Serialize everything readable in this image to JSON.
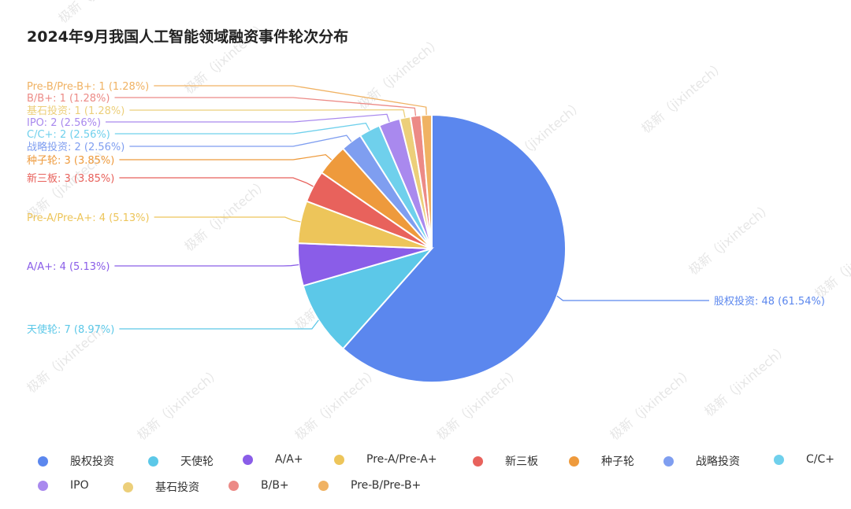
{
  "colors": {
    "股权投资": "#5b87ee",
    "天使轮": "#5cc8e8",
    "A/A+": "#8a5de8",
    "Pre-A/Pre-A+": "#edc55a",
    "新三板": "#e8625c",
    "种子轮": "#ee9a3c",
    "战略投资": "#7f9ef0",
    "C/C+": "#6fd0ec",
    "IPO": "#a989ee",
    "基石投资": "#eccf7a",
    "B/B+": "#ec8a86",
    "Pre-B/Pre-B+": "#f0b263"
  },
  "chart_data": {
    "type": "pie",
    "title": "2024年9月我国人工智能领域融资事件轮次分布",
    "slices": [
      {
        "name": "股权投资",
        "value": 48,
        "percent": "61.54%"
      },
      {
        "name": "天使轮",
        "value": 7,
        "percent": "8.97%"
      },
      {
        "name": "A/A+",
        "value": 4,
        "percent": "5.13%"
      },
      {
        "name": "Pre-A/Pre-A+",
        "value": 4,
        "percent": "5.13%"
      },
      {
        "name": "新三板",
        "value": 3,
        "percent": "3.85%"
      },
      {
        "name": "种子轮",
        "value": 3,
        "percent": "3.85%"
      },
      {
        "name": "战略投资",
        "value": 2,
        "percent": "2.56%"
      },
      {
        "name": "C/C+",
        "value": 2,
        "percent": "2.56%"
      },
      {
        "name": "IPO",
        "value": 2,
        "percent": "2.56%"
      },
      {
        "name": "基石投资",
        "value": 1,
        "percent": "1.28%"
      },
      {
        "name": "B/B+",
        "value": 1,
        "percent": "1.28%"
      },
      {
        "name": "Pre-B/Pre-B+",
        "value": 1,
        "percent": "1.28%"
      }
    ],
    "labels": [
      "股权投资: 48 (61.54%)",
      "天使轮: 7 (8.97%)",
      "A/A+: 4 (5.13%)",
      "Pre-A/Pre-A+: 4 (5.13%)",
      "新三板: 3 (3.85%)",
      "种子轮: 3 (3.85%)",
      "战略投资: 2 (2.56%)",
      "C/C+: 2 (2.56%)",
      "IPO: 2 (2.56%)",
      "基石投资: 1 (1.28%)",
      "B/B+: 1 (1.28%)",
      "Pre-B/Pre-B+: 1 (1.28%)"
    ],
    "legend_position": "bottom",
    "legend": [
      "股权投资",
      "天使轮",
      "A/A+",
      "Pre-A/Pre-A+",
      "新三板",
      "种子轮",
      "战略投资",
      "C/C+",
      "IPO",
      "基石投资",
      "B/B+",
      "Pre-B/Pre-B+"
    ]
  },
  "watermark": "极新（jixintech）"
}
